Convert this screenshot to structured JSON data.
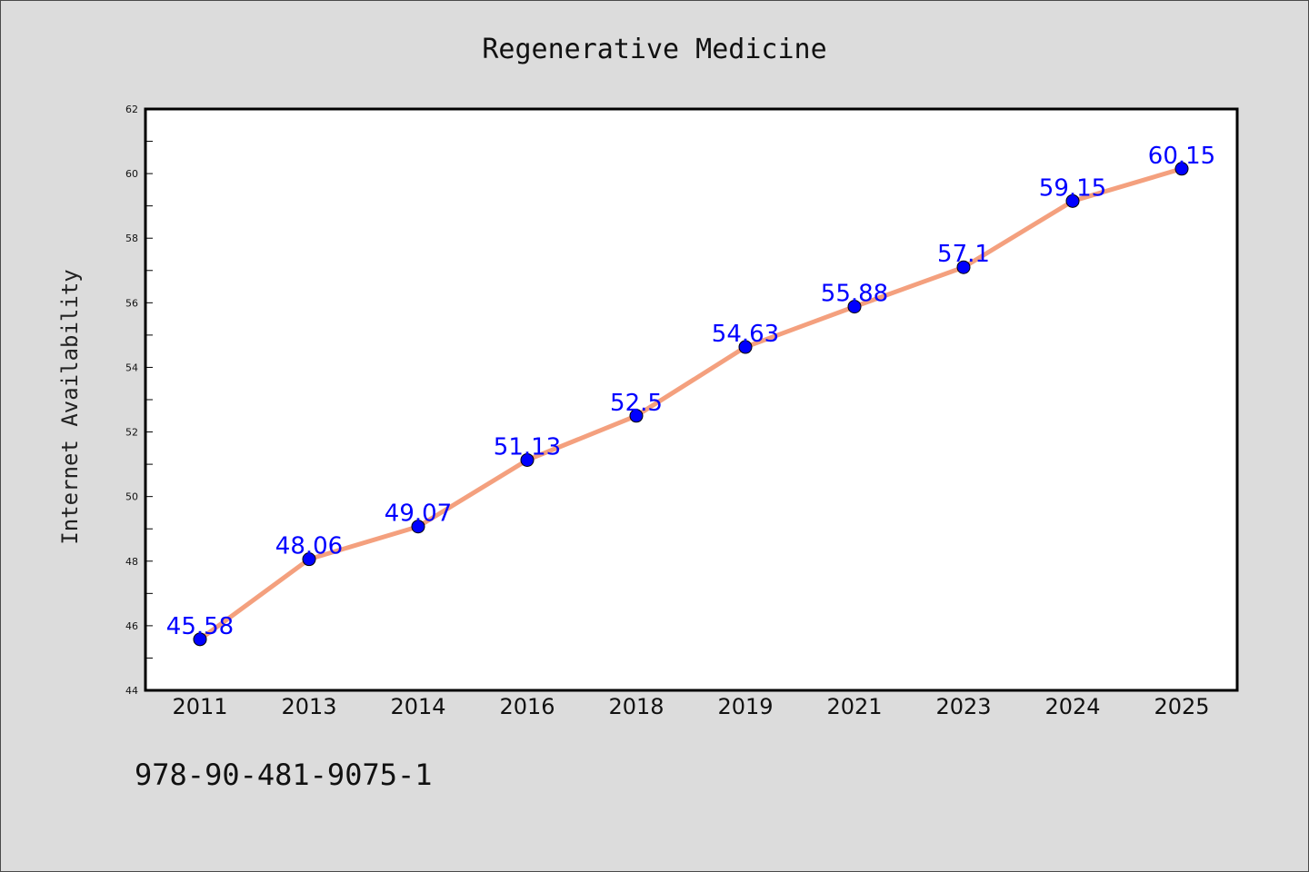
{
  "chart_data": {
    "type": "line",
    "title": "Regenerative Medicine",
    "xlabel": "",
    "ylabel": "Internet Availability",
    "categories": [
      "2011",
      "2013",
      "2014",
      "2016",
      "2018",
      "2019",
      "2021",
      "2023",
      "2024",
      "2025"
    ],
    "series": [
      {
        "values": [
          45.58,
          48.06,
          49.07,
          51.13,
          52.5,
          54.63,
          55.88,
          57.1,
          59.15,
          60.15
        ],
        "labels": [
          "45.58",
          "48.06",
          "49.07",
          "51.13",
          "52.5",
          "54.63",
          "55.88",
          "57.1",
          "59.15",
          "60.15"
        ]
      }
    ],
    "ylim": [
      44,
      62
    ],
    "yticks": [
      44,
      46,
      48,
      50,
      52,
      54,
      56,
      58,
      60,
      62
    ],
    "grid": false,
    "legend": "none",
    "colors": {
      "line": "#f4a07e",
      "marker": "#0000ff",
      "label": "#0000ff",
      "background": "#dcdcdc",
      "plot_background": "#ffffff"
    }
  },
  "footer": {
    "isbn": "978-90-481-9075-1"
  }
}
